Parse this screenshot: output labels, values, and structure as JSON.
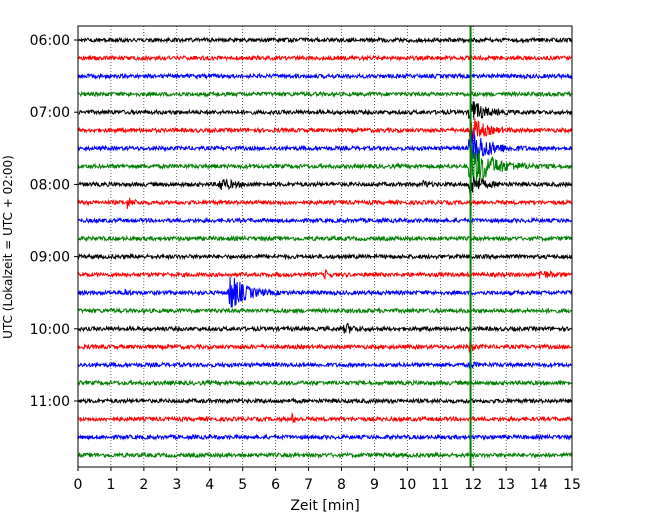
{
  "chart_data": {
    "type": "line",
    "title": "",
    "xlabel": "Zeit  [min]",
    "ylabel": "UTC (Lokalzeit = UTC + 02:00)",
    "xlim": [
      0,
      15
    ],
    "x_ticks": [
      "0",
      "1",
      "2",
      "3",
      "4",
      "5",
      "6",
      "7",
      "8",
      "9",
      "10",
      "11",
      "12",
      "13",
      "14",
      "15"
    ],
    "y_tick_labels": [
      "06:00",
      "07:00",
      "08:00",
      "09:00",
      "10:00",
      "11:00"
    ],
    "y_tick_rows": [
      0,
      4,
      8,
      12,
      16,
      20
    ],
    "grid": "vertical dotted",
    "trace_interval_min": 15,
    "row_count": 24,
    "color_cycle": [
      "#000000",
      "#ff0000",
      "#0000ff",
      "#008000"
    ],
    "noise_amplitude": 2.0,
    "events": [
      {
        "row": 4,
        "t": 11.9,
        "amp": 14,
        "decay": 0.35
      },
      {
        "row": 5,
        "t": 11.9,
        "amp": 16,
        "decay": 0.35
      },
      {
        "row": 6,
        "t": 11.9,
        "amp": 22,
        "decay": 0.45
      },
      {
        "row": 7,
        "t": 11.9,
        "amp": 26,
        "decay": 0.55
      },
      {
        "row": 8,
        "t": 11.9,
        "amp": 12,
        "decay": 0.3
      },
      {
        "row": 8,
        "t": 4.3,
        "amp": 7,
        "decay": 0.3
      },
      {
        "row": 8,
        "t": 10.5,
        "amp": 4,
        "decay": 0.1
      },
      {
        "row": 9,
        "t": 1.5,
        "amp": 5,
        "decay": 0.15
      },
      {
        "row": 13,
        "t": 7.5,
        "amp": 4,
        "decay": 0.1
      },
      {
        "row": 13,
        "t": 14.0,
        "amp": 4,
        "decay": 0.3
      },
      {
        "row": 14,
        "t": 4.6,
        "amp": 20,
        "decay": 0.4
      },
      {
        "row": 14,
        "t": 1.4,
        "amp": 4,
        "decay": 0.1
      },
      {
        "row": 16,
        "t": 8.1,
        "amp": 6,
        "decay": 0.2
      },
      {
        "row": 17,
        "t": 11.9,
        "amp": 6,
        "decay": 0.1
      },
      {
        "row": 18,
        "t": 11.9,
        "amp": 5,
        "decay": 0.1
      },
      {
        "row": 21,
        "t": 6.5,
        "amp": 4,
        "decay": 0.1
      }
    ],
    "spike_line": {
      "t": 11.92,
      "color": "#008000"
    }
  }
}
